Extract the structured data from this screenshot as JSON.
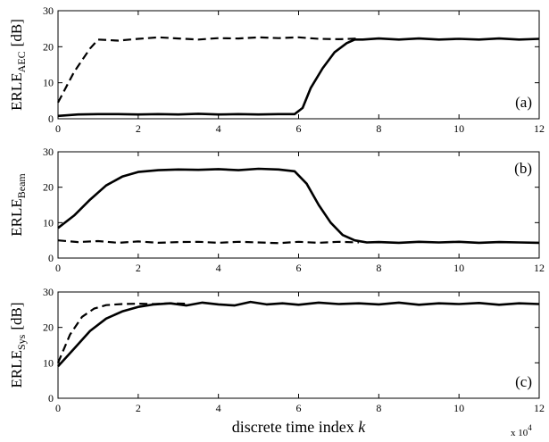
{
  "chart_data": [
    {
      "type": "line",
      "panel_label": "(a)",
      "ylabel_main": "ERLE",
      "ylabel_sub": "AEC",
      "ylabel_unit": "[dB]",
      "xlim": [
        0,
        12
      ],
      "ylim": [
        0,
        30
      ],
      "xticks": [
        "0",
        "2",
        "4",
        "6",
        "8",
        "10",
        "12"
      ],
      "yticks": [
        "0",
        "10",
        "20",
        "30"
      ],
      "series": [
        {
          "style": "solid",
          "x": [
            0,
            0.5,
            1,
            1.5,
            2,
            2.5,
            3,
            3.5,
            4,
            4.5,
            5,
            5.5,
            5.9,
            6.1,
            6.3,
            6.6,
            6.9,
            7.2,
            7.4,
            7.6,
            8,
            8.5,
            9,
            9.5,
            10,
            10.5,
            11,
            11.5,
            12
          ],
          "y": [
            0.8,
            1.2,
            1.3,
            1.3,
            1.2,
            1.3,
            1.2,
            1.4,
            1.2,
            1.3,
            1.2,
            1.3,
            1.3,
            3,
            8.5,
            14,
            18.5,
            21,
            22,
            22,
            22.3,
            22,
            22.3,
            22,
            22.2,
            22,
            22.3,
            22,
            22.2
          ]
        },
        {
          "style": "dashed",
          "x": [
            0,
            0.4,
            0.8,
            1.0,
            1.5,
            2,
            2.5,
            3,
            3.5,
            4,
            4.5,
            5,
            5.5,
            6,
            6.5,
            7,
            7.5
          ],
          "y": [
            4.5,
            13,
            19.5,
            22,
            21.7,
            22.2,
            22.6,
            22.3,
            22,
            22.4,
            22.3,
            22.6,
            22.4,
            22.6,
            22.2,
            22.1,
            22.3
          ]
        }
      ]
    },
    {
      "type": "line",
      "panel_label": "(b)",
      "ylabel_main": "ERLE",
      "ylabel_sub": "Beam",
      "ylabel_unit": "",
      "xlim": [
        0,
        12
      ],
      "ylim": [
        0,
        30
      ],
      "xticks": [
        "0",
        "2",
        "4",
        "6",
        "8",
        "10",
        "12"
      ],
      "yticks": [
        "0",
        "10",
        "20",
        "30"
      ],
      "series": [
        {
          "style": "solid",
          "x": [
            0,
            0.4,
            0.8,
            1.2,
            1.6,
            2,
            2.5,
            3,
            3.5,
            4,
            4.5,
            5,
            5.5,
            5.9,
            6.2,
            6.5,
            6.8,
            7.1,
            7.4,
            7.7,
            8,
            8.5,
            9,
            9.5,
            10,
            10.5,
            11,
            11.5,
            12
          ],
          "y": [
            8.5,
            12,
            16.5,
            20.5,
            23,
            24.3,
            24.8,
            25,
            24.9,
            25.1,
            24.8,
            25.2,
            25,
            24.5,
            21,
            15,
            10,
            6.5,
            5,
            4.4,
            4.5,
            4.3,
            4.6,
            4.4,
            4.6,
            4.3,
            4.5,
            4.4,
            4.3
          ]
        },
        {
          "style": "dashed",
          "x": [
            0,
            0.5,
            1,
            1.5,
            2,
            2.5,
            3,
            3.5,
            4,
            4.5,
            5,
            5.5,
            6,
            6.5,
            7,
            7.5
          ],
          "y": [
            5,
            4.5,
            4.8,
            4.3,
            4.7,
            4.3,
            4.5,
            4.6,
            4.3,
            4.6,
            4.4,
            4.2,
            4.6,
            4.3,
            4.6,
            4.4
          ]
        }
      ]
    },
    {
      "type": "line",
      "panel_label": "(c)",
      "ylabel_main": "ERLE",
      "ylabel_sub": "Sys",
      "ylabel_unit": "[dB]",
      "xlim": [
        0,
        12
      ],
      "ylim": [
        0,
        30
      ],
      "xticks": [
        "0",
        "2",
        "4",
        "6",
        "8",
        "10",
        "12"
      ],
      "yticks": [
        "0",
        "10",
        "20",
        "30"
      ],
      "xlabel_main": "discrete time index",
      "xlabel_var": "k",
      "x_multiplier": "x 10",
      "x_multiplier_exp": "4",
      "series": [
        {
          "style": "solid",
          "x": [
            0,
            0.4,
            0.8,
            1.2,
            1.6,
            2,
            2.4,
            2.8,
            3.2,
            3.6,
            4,
            4.4,
            4.8,
            5.2,
            5.6,
            6,
            6.5,
            7,
            7.5,
            8,
            8.5,
            9,
            9.5,
            10,
            10.5,
            11,
            11.5,
            12
          ],
          "y": [
            9,
            14,
            19,
            22.5,
            24.5,
            25.8,
            26.5,
            26.8,
            26.2,
            27,
            26.5,
            26.2,
            27.2,
            26.5,
            26.8,
            26.4,
            27,
            26.6,
            26.8,
            26.5,
            27,
            26.4,
            26.8,
            26.6,
            26.9,
            26.4,
            26.8,
            26.6
          ]
        },
        {
          "style": "dashed",
          "x": [
            0,
            0.3,
            0.6,
            0.9,
            1.2,
            1.6,
            2,
            2.4,
            2.8,
            3.2
          ],
          "y": [
            10,
            18,
            23,
            25.3,
            26.3,
            26.6,
            26.7,
            26.6,
            26.8,
            26.7
          ]
        }
      ]
    }
  ]
}
